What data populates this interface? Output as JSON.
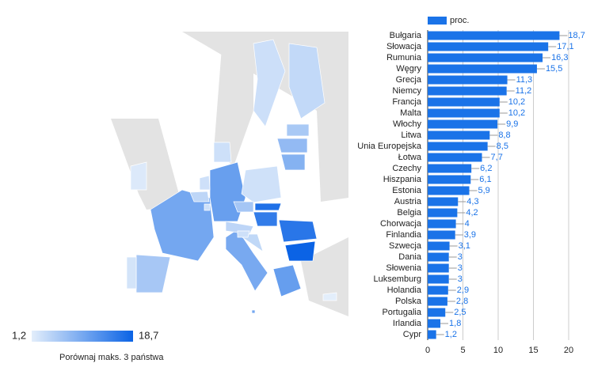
{
  "chart_data": {
    "type": "bar",
    "orientation": "horizontal",
    "categories": [
      "Bułgaria",
      "Słowacja",
      "Rumunia",
      "Węgry",
      "Grecja",
      "Niemcy",
      "Francja",
      "Malta",
      "Włochy",
      "Litwa",
      "Unia Europejska",
      "Łotwa",
      "Czechy",
      "Hiszpania",
      "Estonia",
      "Austria",
      "Belgia",
      "Chorwacja",
      "Finlandia",
      "Szwecja",
      "Dania",
      "Słowenia",
      "Luksemburg",
      "Holandia",
      "Polska",
      "Portugalia",
      "Irlandia",
      "Cypr"
    ],
    "series": [
      {
        "name": "proc.",
        "color": "#1a73e8",
        "values": [
          18.7,
          17.1,
          16.3,
          15.5,
          11.3,
          11.2,
          10.2,
          10.2,
          9.9,
          8.8,
          8.5,
          7.7,
          6.2,
          6.1,
          5.9,
          4.3,
          4.2,
          4,
          3.9,
          3.1,
          3,
          3,
          3,
          2.9,
          2.8,
          2.5,
          1.8,
          1.2
        ],
        "value_labels": [
          "18,7",
          "17,1",
          "16,3",
          "15,5",
          "11,3",
          "11,2",
          "10,2",
          "10,2",
          "9,9",
          "8,8",
          "8,5",
          "7,7",
          "6,2",
          "6,1",
          "5,9",
          "4,3",
          "4,2",
          "4",
          "3,9",
          "3,1",
          "3",
          "3",
          "3",
          "2,9",
          "2,8",
          "2,5",
          "1,8",
          "1,2"
        ]
      }
    ],
    "xlim": [
      0,
      20
    ],
    "xticks": [
      0,
      5,
      10,
      15,
      20
    ],
    "grid": true,
    "colorbar": {
      "ticks": [
        {
          "value": 1.2,
          "label": "1,2"
        },
        {
          "value": 18.7,
          "label": "18,7"
        }
      ],
      "colors": [
        "#e3eefb",
        "#0b63e5"
      ]
    },
    "footer": "Porównaj maks. 3 państwa"
  }
}
